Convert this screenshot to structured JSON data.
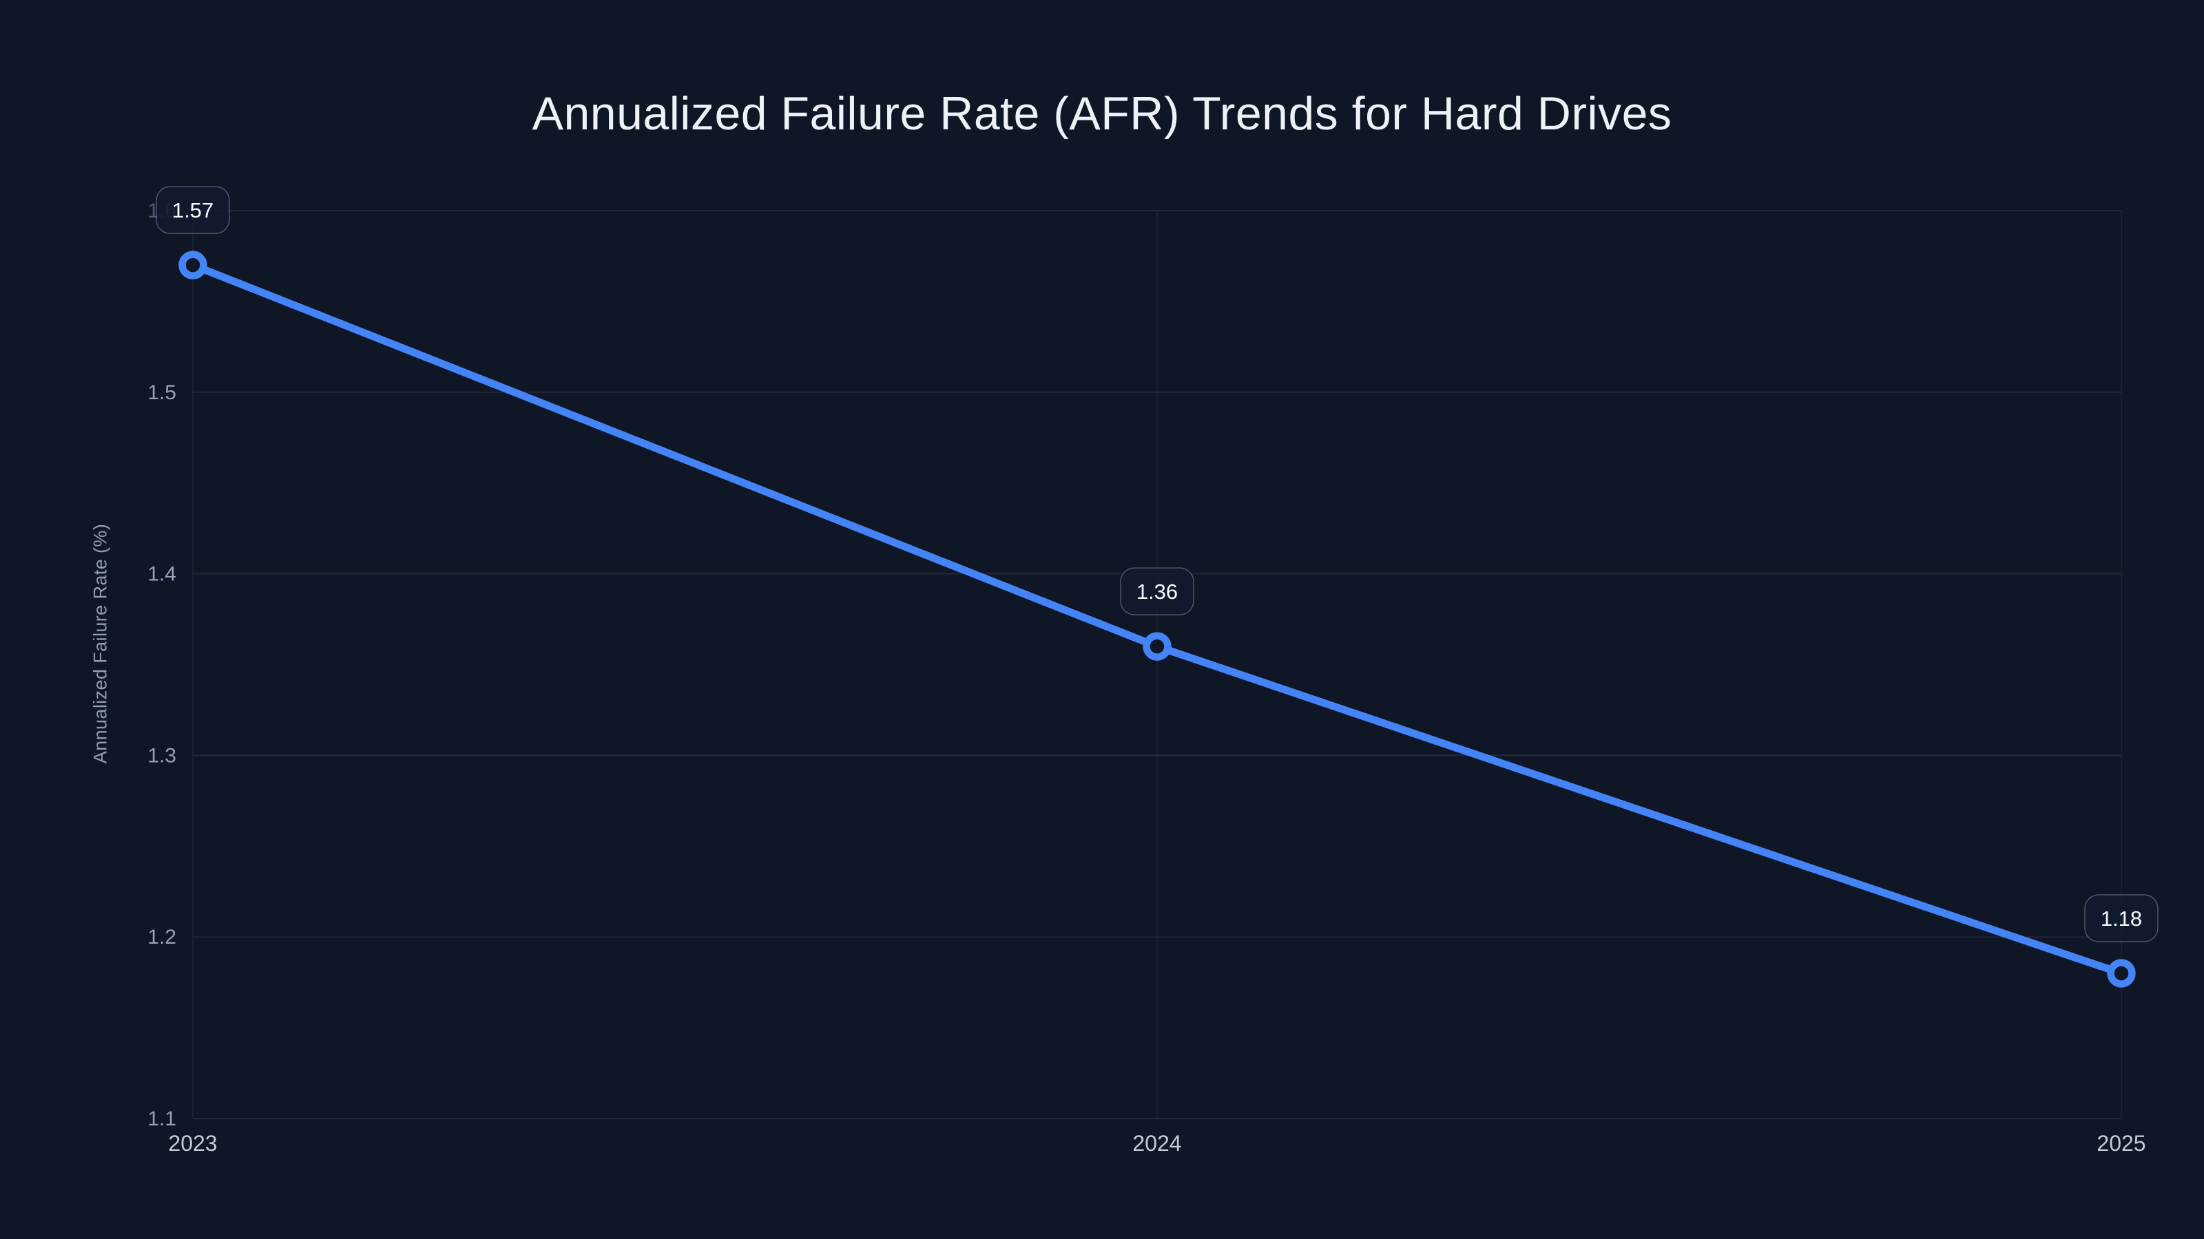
{
  "chart_data": {
    "type": "line",
    "title": "Annualized Failure Rate (AFR) Trends for Hard Drives",
    "xlabel": "",
    "ylabel": "Annualized Failure Rate (%)",
    "categories": [
      "2023",
      "2024",
      "2025"
    ],
    "series": [
      {
        "name": "Annualized Failure Rate",
        "values": [
          1.57,
          1.36,
          1.18
        ]
      }
    ],
    "point_labels": [
      "1.57",
      "1.36",
      "1.18"
    ],
    "yticks": [
      "1.1",
      "1.2",
      "1.3",
      "1.4",
      "1.5",
      "1.6"
    ],
    "ylim": [
      1.1,
      1.6
    ],
    "grid": true,
    "legend": false
  },
  "colors": {
    "background": "#0f1726",
    "title_text": "#eef2f8",
    "y_tick_text": "#93a2b8",
    "x_tick_text": "#c2cbd8",
    "axis_title_text": "#8d9db4",
    "grid_line": "rgba(148,163,184,0.17)",
    "grid_line_vertical": "rgba(148,163,184,0.11)",
    "series_line": "#4484f6",
    "marker_ring": "#4484f6",
    "marker_fill": "#0f1726",
    "badge_fill": "rgba(18,27,46,0.85)",
    "badge_border": "rgba(148,163,184,0.45)",
    "badge_text": "#f7f9fc"
  }
}
